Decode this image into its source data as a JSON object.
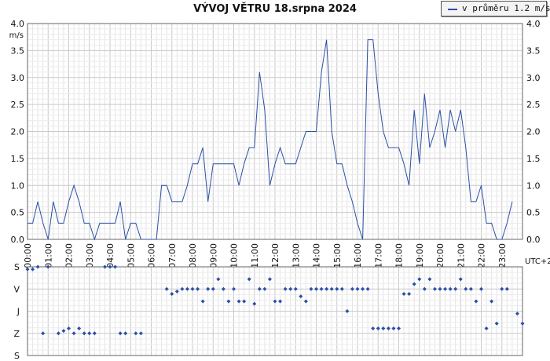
{
  "chart_data": [
    {
      "type": "line",
      "title": "VÝVOJ VĚTRU  18.srpna 2024",
      "ylabel": "m/s",
      "timezone_label": "UTC+2",
      "legend": {
        "label": "v průměru 1.2 m/s",
        "placement": "top-right"
      },
      "grid": true,
      "ylim": [
        0,
        4.0
      ],
      "yticks": [
        "0.0",
        "0.5",
        "1.0",
        "1.5",
        "2.0",
        "2.5",
        "3.0",
        "3.5",
        "4.0"
      ],
      "xlim_hours": [
        0,
        24
      ],
      "xticks": [
        "00:00",
        "01:00",
        "02:00",
        "03:00",
        "04:00",
        "05:00",
        "06:00",
        "07:00",
        "08:00",
        "09:00",
        "10:00",
        "11:00",
        "12:00",
        "13:00",
        "14:00",
        "15:00",
        "16:00",
        "17:00",
        "18:00",
        "19:00",
        "20:00",
        "21:00",
        "22:00",
        "23:00"
      ],
      "series": [
        {
          "color": "#2b4fa8",
          "points": [
            [
              0.0,
              0.3
            ],
            [
              0.25,
              0.3
            ],
            [
              0.5,
              0.7
            ],
            [
              0.75,
              0.3
            ],
            [
              1.0,
              0.0
            ],
            [
              1.25,
              0.7
            ],
            [
              1.5,
              0.3
            ],
            [
              1.75,
              0.3
            ],
            [
              2.0,
              0.7
            ],
            [
              2.25,
              1.0
            ],
            [
              2.5,
              0.7
            ],
            [
              2.75,
              0.3
            ],
            [
              3.0,
              0.3
            ],
            [
              3.25,
              0.0
            ],
            [
              3.5,
              0.3
            ],
            [
              3.75,
              0.3
            ],
            [
              4.0,
              0.3
            ],
            [
              4.25,
              0.3
            ],
            [
              4.5,
              0.7
            ],
            [
              4.75,
              0.0
            ],
            [
              5.0,
              0.3
            ],
            [
              5.25,
              0.3
            ],
            [
              5.5,
              0.0
            ],
            [
              5.75,
              0.0
            ],
            [
              6.0,
              0.0
            ],
            [
              6.25,
              0.0
            ],
            [
              6.5,
              1.0
            ],
            [
              6.75,
              1.0
            ],
            [
              7.0,
              0.7
            ],
            [
              7.25,
              0.7
            ],
            [
              7.5,
              0.7
            ],
            [
              7.75,
              1.0
            ],
            [
              8.0,
              1.4
            ],
            [
              8.25,
              1.4
            ],
            [
              8.5,
              1.7
            ],
            [
              8.75,
              0.7
            ],
            [
              9.0,
              1.4
            ],
            [
              9.25,
              1.4
            ],
            [
              9.5,
              1.4
            ],
            [
              9.75,
              1.4
            ],
            [
              10.0,
              1.4
            ],
            [
              10.25,
              1.0
            ],
            [
              10.5,
              1.4
            ],
            [
              10.75,
              1.7
            ],
            [
              11.0,
              1.7
            ],
            [
              11.25,
              3.1
            ],
            [
              11.5,
              2.4
            ],
            [
              11.75,
              1.0
            ],
            [
              12.0,
              1.4
            ],
            [
              12.25,
              1.7
            ],
            [
              12.5,
              1.4
            ],
            [
              12.75,
              1.4
            ],
            [
              13.0,
              1.4
            ],
            [
              13.25,
              1.7
            ],
            [
              13.5,
              2.0
            ],
            [
              13.75,
              2.0
            ],
            [
              14.0,
              2.0
            ],
            [
              14.25,
              3.1
            ],
            [
              14.5,
              3.7
            ],
            [
              14.75,
              2.0
            ],
            [
              15.0,
              1.4
            ],
            [
              15.25,
              1.4
            ],
            [
              15.5,
              1.0
            ],
            [
              15.75,
              0.7
            ],
            [
              16.0,
              0.3
            ],
            [
              16.25,
              0.0
            ],
            [
              16.5,
              3.7
            ],
            [
              16.75,
              3.7
            ],
            [
              17.0,
              2.7
            ],
            [
              17.25,
              2.0
            ],
            [
              17.5,
              1.7
            ],
            [
              17.75,
              1.7
            ],
            [
              18.0,
              1.7
            ],
            [
              18.25,
              1.4
            ],
            [
              18.5,
              1.0
            ],
            [
              18.75,
              2.4
            ],
            [
              19.0,
              1.4
            ],
            [
              19.25,
              2.7
            ],
            [
              19.5,
              1.7
            ],
            [
              19.75,
              2.0
            ],
            [
              20.0,
              2.4
            ],
            [
              20.25,
              1.7
            ],
            [
              20.5,
              2.4
            ],
            [
              20.75,
              2.0
            ],
            [
              21.0,
              2.4
            ],
            [
              21.25,
              1.7
            ],
            [
              21.5,
              0.7
            ],
            [
              21.75,
              0.7
            ],
            [
              22.0,
              1.0
            ],
            [
              22.25,
              0.3
            ],
            [
              22.5,
              0.3
            ],
            [
              22.75,
              0.0
            ],
            [
              23.0,
              0.0
            ],
            [
              23.25,
              0.3
            ],
            [
              23.5,
              0.7
            ]
          ]
        }
      ]
    },
    {
      "type": "scatter",
      "title": "",
      "ylabel": "",
      "y_categories": [
        "S",
        "V",
        "J",
        "Z",
        "S"
      ],
      "ylim_degrees": [
        0,
        360
      ],
      "xlim_hours": [
        0,
        24
      ],
      "grid": true,
      "series": [
        {
          "color": "#2b4fa8",
          "points": [
            [
              0.0,
              10
            ],
            [
              0.25,
              10
            ],
            [
              0.5,
              0
            ],
            [
              0.75,
              270
            ],
            [
              1.0,
              0
            ],
            [
              1.5,
              270
            ],
            [
              1.75,
              260
            ],
            [
              2.0,
              250
            ],
            [
              2.25,
              270
            ],
            [
              2.5,
              250
            ],
            [
              2.75,
              270
            ],
            [
              3.0,
              270
            ],
            [
              3.25,
              270
            ],
            [
              3.75,
              0
            ],
            [
              4.0,
              0
            ],
            [
              4.25,
              0
            ],
            [
              4.5,
              270
            ],
            [
              4.75,
              270
            ],
            [
              5.25,
              270
            ],
            [
              5.5,
              270
            ],
            [
              6.75,
              90
            ],
            [
              7.0,
              110
            ],
            [
              7.25,
              100
            ],
            [
              7.5,
              90
            ],
            [
              7.75,
              90
            ],
            [
              8.0,
              90
            ],
            [
              8.25,
              90
            ],
            [
              8.5,
              140
            ],
            [
              8.75,
              90
            ],
            [
              9.0,
              90
            ],
            [
              9.25,
              50
            ],
            [
              9.5,
              90
            ],
            [
              9.75,
              140
            ],
            [
              10.0,
              90
            ],
            [
              10.25,
              140
            ],
            [
              10.5,
              140
            ],
            [
              10.75,
              50
            ],
            [
              11.0,
              150
            ],
            [
              11.25,
              90
            ],
            [
              11.5,
              90
            ],
            [
              11.75,
              50
            ],
            [
              12.0,
              140
            ],
            [
              12.25,
              140
            ],
            [
              12.5,
              90
            ],
            [
              12.75,
              90
            ],
            [
              13.0,
              90
            ],
            [
              13.25,
              120
            ],
            [
              13.5,
              140
            ],
            [
              13.75,
              90
            ],
            [
              14.0,
              90
            ],
            [
              14.25,
              90
            ],
            [
              14.5,
              90
            ],
            [
              14.75,
              90
            ],
            [
              15.0,
              90
            ],
            [
              15.25,
              90
            ],
            [
              15.5,
              180
            ],
            [
              15.75,
              90
            ],
            [
              16.0,
              90
            ],
            [
              16.25,
              90
            ],
            [
              16.5,
              90
            ],
            [
              16.75,
              250
            ],
            [
              17.0,
              250
            ],
            [
              17.25,
              250
            ],
            [
              17.5,
              250
            ],
            [
              17.75,
              250
            ],
            [
              18.0,
              250
            ],
            [
              18.25,
              110
            ],
            [
              18.5,
              110
            ],
            [
              18.75,
              70
            ],
            [
              19.0,
              50
            ],
            [
              19.25,
              90
            ],
            [
              19.5,
              50
            ],
            [
              19.75,
              90
            ],
            [
              20.0,
              90
            ],
            [
              20.25,
              90
            ],
            [
              20.5,
              90
            ],
            [
              20.75,
              90
            ],
            [
              21.0,
              50
            ],
            [
              21.25,
              90
            ],
            [
              21.5,
              90
            ],
            [
              21.75,
              140
            ],
            [
              22.0,
              90
            ],
            [
              22.25,
              250
            ],
            [
              22.5,
              140
            ],
            [
              22.75,
              230
            ],
            [
              23.0,
              90
            ],
            [
              23.25,
              90
            ],
            [
              23.75,
              190
            ],
            [
              24.0,
              230
            ]
          ]
        }
      ]
    }
  ]
}
